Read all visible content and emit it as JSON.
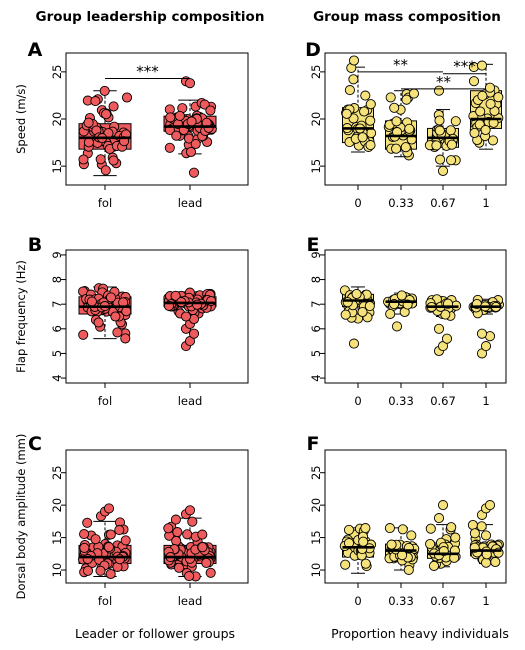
{
  "figure": {
    "left_title": "Group leadership composition",
    "right_title": "Group mass composition",
    "left_xlabel": "Leader or follower groups",
    "right_xlabel": "Proportion heavy individuals",
    "colors": {
      "red": "#ef5a5d",
      "yellow": "#f6e27a",
      "outline": "#000000"
    }
  },
  "chart_data": [
    {
      "id": "A",
      "letter": "A",
      "type": "box",
      "color": "#ef5a5d",
      "categories": [
        "fol",
        "lead"
      ],
      "ylabel": "Speed (m/s)",
      "ylim": [
        13,
        27
      ],
      "yticks": [
        15,
        20,
        25
      ],
      "boxes": [
        {
          "category": "fol",
          "min": 14,
          "q1": 16.8,
          "median": 18.0,
          "q3": 19.5,
          "max": 23
        },
        {
          "category": "lead",
          "min": 16.3,
          "q1": 18.7,
          "median": 19.2,
          "q3": 20.3,
          "max": 22
        }
      ],
      "outliers": [
        {
          "category": "lead",
          "values": [
            24,
            23.8,
            14.3
          ]
        }
      ],
      "significance": [
        {
          "from": "fol",
          "to": "lead",
          "label": "***",
          "y": 24.3
        }
      ]
    },
    {
      "id": "B",
      "letter": "B",
      "type": "box",
      "color": "#ef5a5d",
      "categories": [
        "fol",
        "lead"
      ],
      "ylabel": "Flap frequency (Hz)",
      "ylim": [
        3.8,
        9.2
      ],
      "yticks": [
        4,
        5,
        6,
        7,
        8,
        9
      ],
      "boxes": [
        {
          "category": "fol",
          "min": 5.6,
          "q1": 6.6,
          "median": 6.9,
          "q3": 7.3,
          "max": 7.7
        },
        {
          "category": "lead",
          "min": 6.6,
          "q1": 6.9,
          "median": 7.05,
          "q3": 7.3,
          "max": 7.5
        }
      ],
      "outliers": [
        {
          "category": "lead",
          "values": [
            5.3,
            5.5,
            5.8,
            6.0,
            6.2,
            6.4,
            6.5
          ]
        }
      ],
      "significance": []
    },
    {
      "id": "C",
      "letter": "C",
      "type": "box",
      "color": "#ef5a5d",
      "categories": [
        "fol",
        "lead"
      ],
      "ylabel": "Dorsal body amplitude (mm)",
      "ylim": [
        8,
        28.5
      ],
      "yticks": [
        10,
        15,
        20,
        25
      ],
      "boxes": [
        {
          "category": "fol",
          "min": 9,
          "q1": 11,
          "median": 12.0,
          "q3": 13.8,
          "max": 17.5
        },
        {
          "category": "lead",
          "min": 9,
          "q1": 11,
          "median": 12.0,
          "q3": 13.8,
          "max": 18
        }
      ],
      "outliers": [
        {
          "category": "fol",
          "values": [
            18.3,
            19.0,
            19.5
          ]
        },
        {
          "category": "lead",
          "values": [
            18.6,
            19.2
          ]
        }
      ],
      "significance": []
    },
    {
      "id": "D",
      "letter": "D",
      "type": "box",
      "color": "#f6e27a",
      "categories": [
        "0",
        "0.33",
        "0.67",
        "1"
      ],
      "ylabel": "",
      "ylim": [
        13,
        27
      ],
      "yticks": [
        15,
        20,
        25
      ],
      "boxes": [
        {
          "category": "0",
          "min": 16.5,
          "q1": 17.5,
          "median": 19.0,
          "q3": 21.2,
          "max": 25.5
        },
        {
          "category": "0.33",
          "min": 16,
          "q1": 16.8,
          "median": 18.2,
          "q3": 19.8,
          "max": 23
        },
        {
          "category": "0.67",
          "min": 15,
          "q1": 17.0,
          "median": 18.0,
          "q3": 19.0,
          "max": 21
        },
        {
          "category": "1",
          "min": 16.8,
          "q1": 19.0,
          "median": 20.0,
          "q3": 23.0,
          "max": 25.8
        }
      ],
      "outliers": [
        {
          "category": "0",
          "values": [
            26.2
          ]
        },
        {
          "category": "0.67",
          "values": [
            23,
            14.5
          ]
        }
      ],
      "significance": [
        {
          "from": "0",
          "to": "0.67",
          "label": "**",
          "y": 25.0
        },
        {
          "from": "0.67",
          "to": "1",
          "label": "***",
          "y": 24.8
        },
        {
          "from": "0.33",
          "to": "1",
          "label": "**",
          "y": 23.2
        }
      ]
    },
    {
      "id": "E",
      "letter": "E",
      "type": "box",
      "color": "#f6e27a",
      "categories": [
        "0",
        "0.33",
        "0.67",
        "1"
      ],
      "ylabel": "",
      "ylim": [
        3.8,
        9.2
      ],
      "yticks": [
        4,
        5,
        6,
        7,
        8,
        9
      ],
      "boxes": [
        {
          "category": "0",
          "min": 6.4,
          "q1": 6.9,
          "median": 7.15,
          "q3": 7.4,
          "max": 7.7
        },
        {
          "category": "0.33",
          "min": 6.6,
          "q1": 6.95,
          "median": 7.1,
          "q3": 7.25,
          "max": 7.45
        },
        {
          "category": "0.67",
          "min": 6.5,
          "q1": 6.85,
          "median": 6.9,
          "q3": 7.05,
          "max": 7.2
        },
        {
          "category": "1",
          "min": 6.6,
          "q1": 6.85,
          "median": 6.9,
          "q3": 7.0,
          "max": 7.2
        }
      ],
      "outliers": [
        {
          "category": "0",
          "values": [
            5.4
          ]
        },
        {
          "category": "0.33",
          "values": [
            6.1
          ]
        },
        {
          "category": "0.67",
          "values": [
            5.1,
            5.3,
            5.6,
            6.0
          ]
        },
        {
          "category": "1",
          "values": [
            5.0,
            5.3,
            5.7,
            5.8
          ]
        }
      ],
      "significance": []
    },
    {
      "id": "F",
      "letter": "F",
      "type": "box",
      "color": "#f6e27a",
      "categories": [
        "0",
        "0.33",
        "0.67",
        "1"
      ],
      "ylabel": "",
      "ylim": [
        8,
        28.5
      ],
      "yticks": [
        10,
        15,
        20,
        25
      ],
      "boxes": [
        {
          "category": "0",
          "min": 9.5,
          "q1": 12.0,
          "median": 13.5,
          "q3": 14.5,
          "max": 16.5
        },
        {
          "category": "0.33",
          "min": 10,
          "q1": 11.8,
          "median": 13.0,
          "q3": 14.0,
          "max": 16.5
        },
        {
          "category": "0.67",
          "min": 10.5,
          "q1": 11.8,
          "median": 12.5,
          "q3": 13.8,
          "max": 17
        },
        {
          "category": "1",
          "min": 11,
          "q1": 12.2,
          "median": 13.0,
          "q3": 14.0,
          "max": 17
        }
      ],
      "outliers": [
        {
          "category": "0.67",
          "values": [
            18.0,
            20.0
          ]
        },
        {
          "category": "1",
          "values": [
            18.5,
            19.5,
            20.0
          ]
        }
      ],
      "significance": []
    }
  ]
}
